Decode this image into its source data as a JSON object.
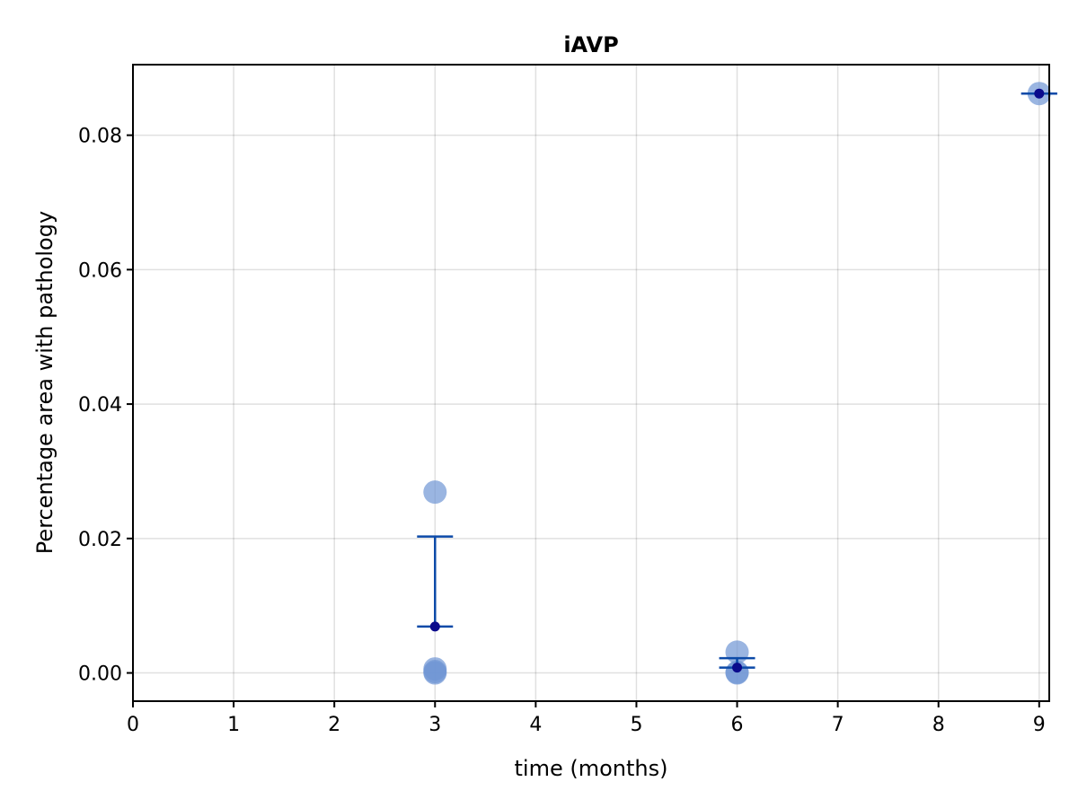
{
  "chart_data": {
    "type": "scatter",
    "title": "iAVP",
    "xlabel": "time (months)",
    "ylabel": "Percentage area with pathology",
    "xlim": [
      0,
      9.1
    ],
    "ylim": [
      -0.0042,
      0.0905
    ],
    "x_ticks": [
      0,
      1,
      2,
      3,
      4,
      5,
      6,
      7,
      8,
      9
    ],
    "x_tick_labels": [
      "0",
      "1",
      "2",
      "3",
      "4",
      "5",
      "6",
      "7",
      "8",
      "9"
    ],
    "y_ticks": [
      0.0,
      0.02,
      0.04,
      0.06,
      0.08
    ],
    "y_tick_labels": [
      "0.00",
      "0.02",
      "0.04",
      "0.06",
      "0.08"
    ],
    "grid": true,
    "legend": "none",
    "individual_points": [
      {
        "x": 3,
        "y": 0.0269
      },
      {
        "x": 3,
        "y": 0.0006
      },
      {
        "x": 3,
        "y": 0.0002
      },
      {
        "x": 3,
        "y": 0.0
      },
      {
        "x": 6,
        "y": 0.0031
      },
      {
        "x": 6,
        "y": 0.0001
      },
      {
        "x": 6,
        "y": 0.0
      },
      {
        "x": 9,
        "y": 0.0862
      }
    ],
    "means": [
      {
        "x": 3,
        "mean": 0.0069,
        "lower": 0.0069,
        "upper": 0.0203
      },
      {
        "x": 6,
        "mean": 0.0008,
        "lower": 0.0008,
        "upper": 0.0022
      },
      {
        "x": 9,
        "mean": 0.0862,
        "lower": 0.0862,
        "upper": 0.0862
      }
    ],
    "colors": {
      "individual": "#6f96d4",
      "individual_opacity": 0.7,
      "mean_point": "#0a0a8c",
      "error_bar": "#0c4aa8"
    }
  }
}
